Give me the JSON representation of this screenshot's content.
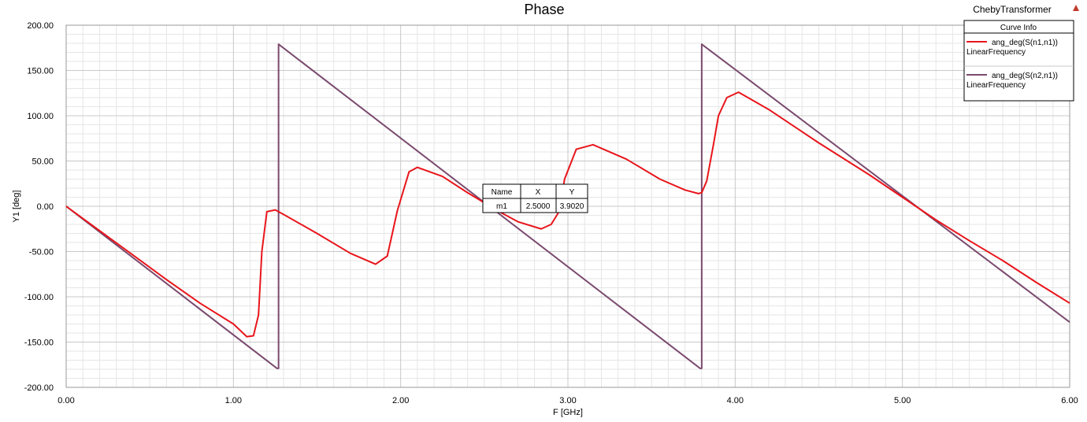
{
  "project_name": "ChebyTransformer",
  "colors": {
    "s11": "#e8151b",
    "s21": "#7a4a6e",
    "grid_major": "#c8c8c8",
    "grid_minor": "#e6e6e6",
    "warning_icon": "#c0392b"
  },
  "legend": {
    "header": "Curve Info",
    "items": [
      {
        "name": "ang_deg(S(n1,n1))",
        "sub": "LinearFrequency"
      },
      {
        "name": "ang_deg(S(n2,n1))",
        "sub": "LinearFrequency"
      }
    ]
  },
  "marker_table": {
    "headers": [
      "Name",
      "X",
      "Y"
    ],
    "row": [
      "m1",
      "2.5000",
      "3.9020"
    ]
  },
  "chart_data": {
    "type": "line",
    "title": "Phase",
    "xlabel": "F [GHz]",
    "ylabel": "Y1 [deg]",
    "xlim": [
      0,
      6
    ],
    "ylim": [
      -200,
      200
    ],
    "x_ticks": [
      "0.00",
      "1.00",
      "2.00",
      "3.00",
      "4.00",
      "5.00",
      "6.00"
    ],
    "y_ticks": [
      "200.00",
      "150.00",
      "100.00",
      "50.00",
      "0.00",
      "-50.00",
      "-100.00",
      "-150.00",
      "-200.00"
    ],
    "grid": true,
    "legend_position": "top-right",
    "series": [
      {
        "name": "ang_deg(S(n1,n1))",
        "color": "#e8151b",
        "points": [
          [
            0,
            0
          ],
          [
            0.2,
            -27
          ],
          [
            0.4,
            -54
          ],
          [
            0.6,
            -81
          ],
          [
            0.8,
            -107
          ],
          [
            1.0,
            -130
          ],
          [
            1.08,
            -144
          ],
          [
            1.12,
            -143
          ],
          [
            1.15,
            -120
          ],
          [
            1.17,
            -50
          ],
          [
            1.2,
            -6
          ],
          [
            1.25,
            -4
          ],
          [
            1.3,
            -9
          ],
          [
            1.5,
            -30
          ],
          [
            1.7,
            -52
          ],
          [
            1.85,
            -64
          ],
          [
            1.92,
            -55
          ],
          [
            1.98,
            -5
          ],
          [
            2.05,
            38
          ],
          [
            2.1,
            43
          ],
          [
            2.25,
            33
          ],
          [
            2.4,
            15
          ],
          [
            2.5,
            3.9
          ],
          [
            2.6,
            -7
          ],
          [
            2.7,
            -17
          ],
          [
            2.84,
            -25
          ],
          [
            2.9,
            -20
          ],
          [
            2.95,
            -5
          ],
          [
            2.98,
            30
          ],
          [
            3.05,
            63
          ],
          [
            3.15,
            68
          ],
          [
            3.35,
            52
          ],
          [
            3.55,
            30
          ],
          [
            3.7,
            18
          ],
          [
            3.78,
            14
          ],
          [
            3.8,
            15
          ],
          [
            3.83,
            28
          ],
          [
            3.87,
            68
          ],
          [
            3.9,
            100
          ],
          [
            3.95,
            120
          ],
          [
            4.02,
            126
          ],
          [
            4.2,
            107
          ],
          [
            4.5,
            70
          ],
          [
            4.8,
            35
          ],
          [
            5.0,
            10
          ],
          [
            5.2,
            -15
          ],
          [
            5.4,
            -38
          ],
          [
            5.6,
            -60
          ],
          [
            5.8,
            -84
          ],
          [
            6.0,
            -107
          ]
        ]
      },
      {
        "name": "ang_deg(S(n2,n1))",
        "color": "#7a4a6e",
        "points": [
          [
            0,
            0
          ],
          [
            1.26,
            -179
          ],
          [
            1.27,
            -179
          ],
          [
            1.27,
            179
          ],
          [
            3.79,
            -179
          ],
          [
            3.8,
            -179
          ],
          [
            3.8,
            179
          ],
          [
            6.0,
            -128
          ]
        ]
      }
    ]
  }
}
